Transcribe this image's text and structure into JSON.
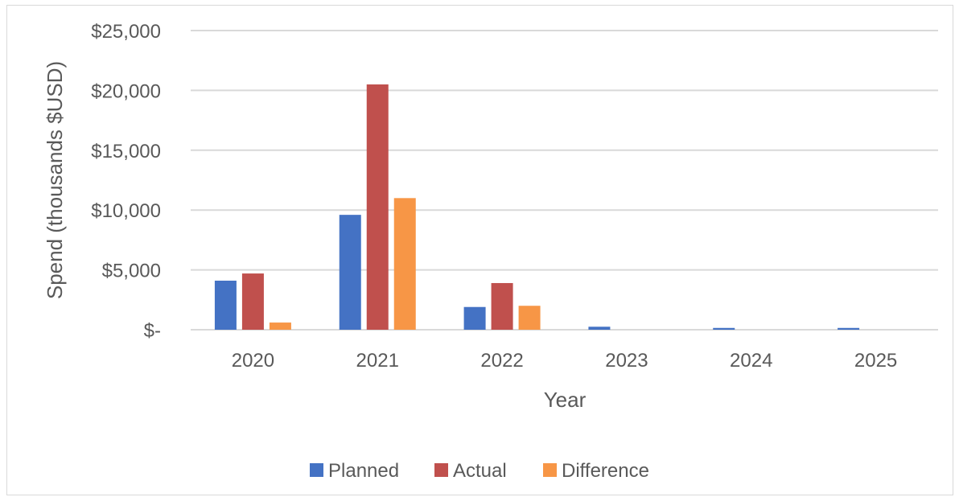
{
  "chart_data": {
    "type": "bar",
    "title": "",
    "xlabel": "Year",
    "ylabel": "Spend (thousands $USD)",
    "categories": [
      "2020",
      "2021",
      "2022",
      "2023",
      "2024",
      "2025"
    ],
    "series": [
      {
        "name": "Planned",
        "color": "#4472c4",
        "values": [
          4100,
          9600,
          1900,
          250,
          150,
          150
        ]
      },
      {
        "name": "Actual",
        "color": "#c0504d",
        "values": [
          4700,
          20500,
          3900,
          0,
          0,
          0
        ]
      },
      {
        "name": "Difference",
        "color": "#f79646",
        "values": [
          600,
          11000,
          2000,
          0,
          0,
          0
        ]
      }
    ],
    "ylim": [
      0,
      25000
    ],
    "yticks": [
      0,
      5000,
      10000,
      15000,
      20000,
      25000
    ],
    "ytick_labels": [
      "$-",
      "$5,000",
      "$10,000",
      "$15,000",
      "$20,000",
      "$25,000"
    ],
    "grid": true,
    "legend_position": "bottom",
    "gridline_color": "#d9d9d9"
  }
}
